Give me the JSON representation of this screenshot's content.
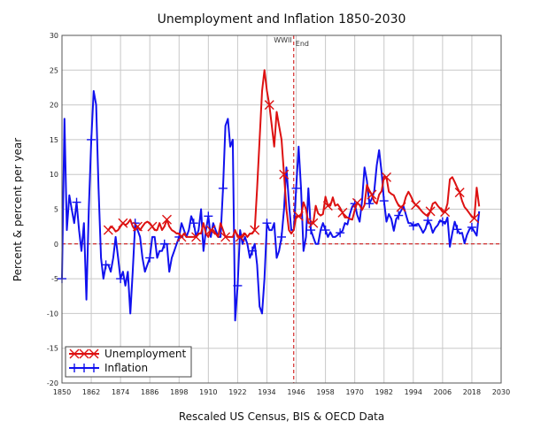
{
  "chart_data": {
    "type": "line",
    "title": "Unemployment and Inflation 1850-2030",
    "xlabel": "Rescaled US Census, BIS & OECD Data",
    "ylabel": "Percent & percent per year",
    "xlim": [
      1850,
      2030
    ],
    "ylim": [
      -20,
      30
    ],
    "grid": true,
    "legend_position": "bottom-left",
    "x_ticks": [
      1850,
      1862,
      1874,
      1886,
      1898,
      1910,
      1922,
      1934,
      1946,
      1958,
      1970,
      1982,
      1994,
      2006,
      2018,
      2030
    ],
    "y_ticks": [
      -20,
      -15,
      -10,
      -5,
      0,
      5,
      10,
      15,
      20,
      25,
      30
    ],
    "reference_lines": [
      {
        "type": "horizontal",
        "value": 0,
        "color": "#cc0000"
      },
      {
        "type": "vertical",
        "value": 1945,
        "color": "#cc0000",
        "label": "WWII",
        "sublabel": "End"
      }
    ],
    "series": [
      {
        "name": "Unemployment",
        "color": "#dd1111",
        "marker": "x",
        "x": [
          1869,
          1870,
          1871,
          1872,
          1873,
          1874,
          1875,
          1876,
          1877,
          1878,
          1879,
          1880,
          1881,
          1882,
          1883,
          1884,
          1885,
          1886,
          1887,
          1888,
          1889,
          1890,
          1891,
          1892,
          1893,
          1894,
          1895,
          1896,
          1897,
          1898,
          1899,
          1900,
          1901,
          1902,
          1903,
          1904,
          1905,
          1906,
          1907,
          1908,
          1909,
          1910,
          1911,
          1912,
          1913,
          1914,
          1915,
          1916,
          1917,
          1918,
          1919,
          1920,
          1921,
          1922,
          1923,
          1924,
          1925,
          1926,
          1927,
          1928,
          1929,
          1930,
          1931,
          1932,
          1933,
          1934,
          1935,
          1936,
          1937,
          1938,
          1939,
          1940,
          1941,
          1942,
          1943,
          1944,
          1945,
          1946,
          1947,
          1948,
          1949,
          1950,
          1951,
          1952,
          1953,
          1954,
          1955,
          1956,
          1957,
          1958,
          1959,
          1960,
          1961,
          1962,
          1963,
          1964,
          1965,
          1966,
          1967,
          1968,
          1969,
          1970,
          1971,
          1972,
          1973,
          1974,
          1975,
          1976,
          1977,
          1978,
          1979,
          1980,
          1981,
          1982,
          1983,
          1984,
          1985,
          1986,
          1987,
          1988,
          1989,
          1990,
          1991,
          1992,
          1993,
          1994,
          1995,
          1996,
          1997,
          1998,
          1999,
          2000,
          2001,
          2002,
          2003,
          2004,
          2005,
          2006,
          2007,
          2008,
          2009,
          2010,
          2011,
          2012,
          2013,
          2014,
          2015,
          2016,
          2017,
          2018,
          2019,
          2020,
          2021
        ],
        "values": [
          2,
          2.5,
          2.3,
          1.8,
          2,
          2.5,
          3,
          2.7,
          3,
          3.5,
          2.5,
          2,
          2.5,
          2,
          2.5,
          3,
          3.2,
          3,
          2.5,
          2,
          2,
          3,
          2,
          2.5,
          3.5,
          2.5,
          2,
          1.8,
          1.5,
          1.5,
          1,
          1.5,
          1,
          1,
          1,
          1,
          1,
          1.5,
          1.5,
          3,
          1.5,
          1,
          2,
          2,
          1.5,
          1,
          3,
          2,
          1,
          1,
          1,
          1,
          2,
          1,
          1,
          1,
          1.5,
          1,
          1.5,
          1.5,
          2,
          8,
          15,
          22,
          25,
          22,
          20,
          17,
          14,
          19,
          17,
          15,
          10,
          5,
          2,
          1.5,
          2,
          4,
          4,
          4,
          6,
          5,
          3,
          3,
          3,
          5.5,
          4.4,
          4.1,
          4.3,
          6.8,
          5.5,
          5.5,
          6.7,
          5.5,
          5.7,
          5.2,
          4.5,
          3.8,
          3.8,
          3.6,
          3.5,
          4.9,
          5.9,
          5.6,
          4.9,
          5.6,
          8.5,
          7.7,
          7.1,
          6.1,
          5.8,
          7.1,
          7.6,
          9.7,
          9.6,
          7.5,
          7.2,
          7,
          6.2,
          5.5,
          5.3,
          5.6,
          6.8,
          7.5,
          6.9,
          6.1,
          5.6,
          5.4,
          4.9,
          4.5,
          4.2,
          4,
          4.7,
          5.8,
          6,
          5.5,
          5.1,
          4.6,
          4.6,
          5.8,
          9.3,
          9.6,
          8.9,
          8.1,
          7.4,
          6.2,
          5.3,
          4.9,
          4.4,
          3.9,
          3.7,
          8.1,
          5.4
        ]
      },
      {
        "name": "Inflation",
        "color": "#1111ee",
        "marker": "+",
        "x": [
          1850,
          1851,
          1852,
          1853,
          1854,
          1855,
          1856,
          1857,
          1858,
          1859,
          1860,
          1861,
          1862,
          1863,
          1864,
          1865,
          1866,
          1867,
          1868,
          1869,
          1870,
          1871,
          1872,
          1873,
          1874,
          1875,
          1876,
          1877,
          1878,
          1879,
          1880,
          1881,
          1882,
          1883,
          1884,
          1885,
          1886,
          1887,
          1888,
          1889,
          1890,
          1891,
          1892,
          1893,
          1894,
          1895,
          1896,
          1897,
          1898,
          1899,
          1900,
          1901,
          1902,
          1903,
          1904,
          1905,
          1906,
          1907,
          1908,
          1909,
          1910,
          1911,
          1912,
          1913,
          1914,
          1915,
          1916,
          1917,
          1918,
          1919,
          1920,
          1921,
          1922,
          1923,
          1924,
          1925,
          1926,
          1927,
          1928,
          1929,
          1930,
          1931,
          1932,
          1933,
          1934,
          1935,
          1936,
          1937,
          1938,
          1939,
          1940,
          1941,
          1942,
          1943,
          1944,
          1945,
          1946,
          1947,
          1948,
          1949,
          1950,
          1951,
          1952,
          1953,
          1954,
          1955,
          1956,
          1957,
          1958,
          1959,
          1960,
          1961,
          1962,
          1963,
          1964,
          1965,
          1966,
          1967,
          1968,
          1969,
          1970,
          1971,
          1972,
          1973,
          1974,
          1975,
          1976,
          1977,
          1978,
          1979,
          1980,
          1981,
          1982,
          1983,
          1984,
          1985,
          1986,
          1987,
          1988,
          1989,
          1990,
          1991,
          1992,
          1993,
          1994,
          1995,
          1996,
          1997,
          1998,
          1999,
          2000,
          2001,
          2002,
          2003,
          2004,
          2005,
          2006,
          2007,
          2008,
          2009,
          2010,
          2011,
          2012,
          2013,
          2014,
          2015,
          2016,
          2017,
          2018,
          2019,
          2020,
          2021
        ],
        "values": [
          -5,
          18,
          2,
          7,
          5,
          3,
          6,
          2,
          -1,
          3,
          -8,
          5,
          15,
          22,
          20,
          8,
          -2,
          -5,
          -3,
          -3,
          -4,
          -2,
          1,
          -2,
          -5,
          -4,
          -6,
          -4,
          -10,
          -4,
          3,
          2,
          1,
          -2,
          -4,
          -3,
          -2,
          1,
          1,
          -2,
          -1,
          -1,
          0,
          0,
          -4,
          -2,
          -1,
          0,
          1,
          3,
          2,
          1,
          2,
          4,
          3,
          1,
          2,
          5,
          -1,
          2,
          4,
          1,
          3,
          2,
          1,
          1,
          8,
          17,
          18,
          14,
          15,
          -11,
          -6,
          2,
          0,
          1,
          0,
          -2,
          -1,
          0,
          -3,
          -9,
          -10,
          -5,
          3,
          2,
          2,
          3,
          -2,
          -1,
          1,
          5,
          11,
          6,
          2,
          2,
          8,
          14,
          8,
          -1,
          1,
          8,
          2,
          1,
          0,
          0,
          2,
          3,
          2,
          1,
          1.7,
          1,
          1,
          1.3,
          1.6,
          1.9,
          3,
          2.8,
          4.3,
          5.4,
          5.8,
          4.2,
          3.2,
          6.2,
          11,
          9.1,
          5.8,
          6.5,
          7.6,
          11.3,
          13.5,
          10.3,
          6.2,
          3.2,
          4.3,
          3.6,
          1.9,
          3.6,
          4.1,
          4.8,
          5.4,
          4.2,
          3,
          3,
          2.6,
          2.8,
          2.9,
          2.3,
          1.6,
          2.2,
          3.4,
          2.8,
          1.6,
          2.3,
          2.7,
          3.4,
          3.2,
          2.9,
          3.8,
          -0.4,
          1.6,
          3.2,
          2.1,
          1.5,
          1.6,
          0.1,
          1.3,
          2.1,
          2.4,
          1.8,
          1.2,
          4.7
        ]
      }
    ]
  }
}
